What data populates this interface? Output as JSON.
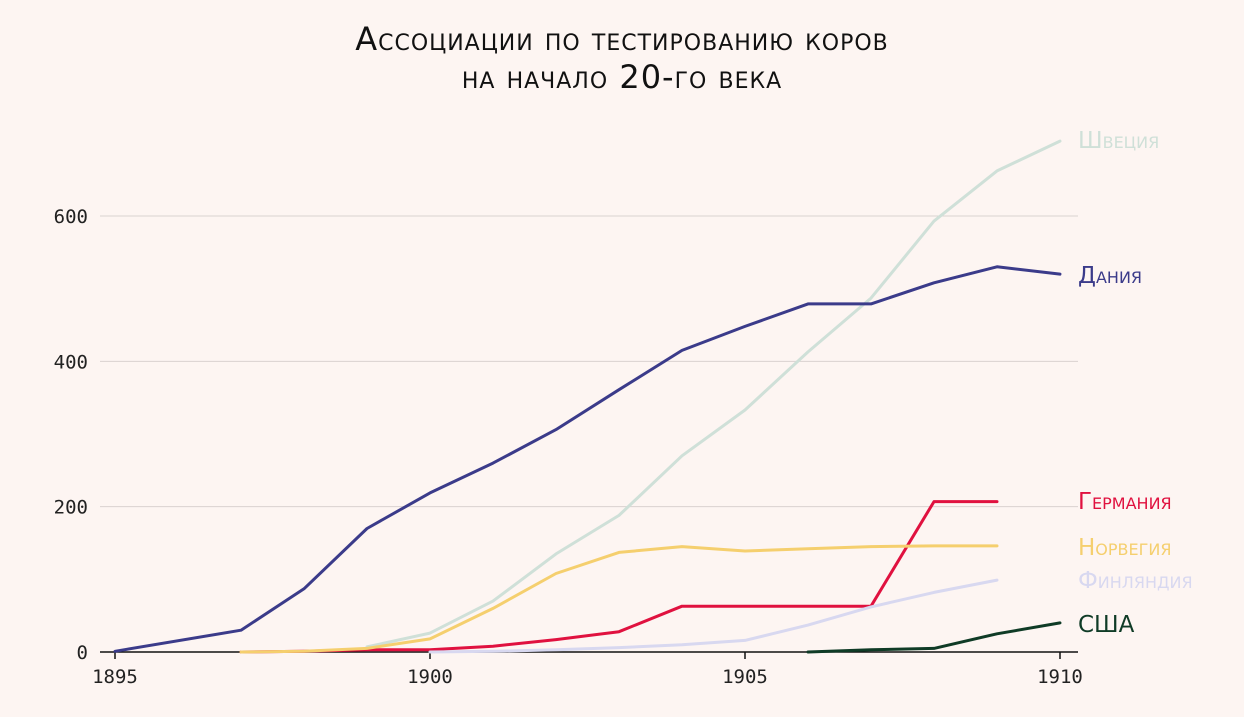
{
  "chart_data": {
    "type": "line",
    "title_line1": "Ассоциации по тестированию коров",
    "title_line2": "на начало 20-го века",
    "xlabel": "",
    "ylabel": "",
    "xlim": [
      1895,
      1910
    ],
    "ylim": [
      0,
      720
    ],
    "x_ticks": [
      1895,
      1900,
      1905,
      1910
    ],
    "y_ticks": [
      0,
      200,
      400,
      600
    ],
    "grid": "horizontal",
    "legend": "labels at line ends (right)",
    "series": [
      {
        "name": "Швеция",
        "color": "#cfe0d8",
        "points": [
          [
            1899,
            7
          ],
          [
            1900,
            26
          ],
          [
            1901,
            70
          ],
          [
            1902,
            135
          ],
          [
            1903,
            188
          ],
          [
            1904,
            270
          ],
          [
            1905,
            333
          ],
          [
            1906,
            413
          ],
          [
            1907,
            487
          ],
          [
            1908,
            593
          ],
          [
            1909,
            662
          ],
          [
            1910,
            703
          ]
        ]
      },
      {
        "name": "Дания",
        "color": "#3b3b8a",
        "points": [
          [
            1895,
            1
          ],
          [
            1897,
            30
          ],
          [
            1898,
            87
          ],
          [
            1899,
            170
          ],
          [
            1900,
            219
          ],
          [
            1901,
            260
          ],
          [
            1902,
            306
          ],
          [
            1903,
            361
          ],
          [
            1904,
            415
          ],
          [
            1905,
            448
          ],
          [
            1906,
            479
          ],
          [
            1907,
            479
          ],
          [
            1908,
            508
          ],
          [
            1909,
            530
          ],
          [
            1910,
            520
          ]
        ]
      },
      {
        "name": "Германия",
        "color": "#e0113f",
        "points": [
          [
            1897,
            0
          ],
          [
            1898,
            1
          ],
          [
            1899,
            3
          ],
          [
            1900,
            3
          ],
          [
            1901,
            8
          ],
          [
            1902,
            17
          ],
          [
            1903,
            28
          ],
          [
            1904,
            63
          ],
          [
            1905,
            63
          ],
          [
            1906,
            63
          ],
          [
            1907,
            63
          ],
          [
            1908,
            207
          ],
          [
            1909,
            207
          ]
        ]
      },
      {
        "name": "Норвегия",
        "color": "#f5cf6e",
        "points": [
          [
            1897,
            0
          ],
          [
            1898,
            1
          ],
          [
            1899,
            5
          ],
          [
            1900,
            18
          ],
          [
            1901,
            60
          ],
          [
            1902,
            108
          ],
          [
            1903,
            137
          ],
          [
            1904,
            145
          ],
          [
            1905,
            139
          ],
          [
            1906,
            142
          ],
          [
            1907,
            145
          ],
          [
            1908,
            146
          ],
          [
            1909,
            146
          ]
        ]
      },
      {
        "name": "Финляндия",
        "color": "#d8d8f0",
        "points": [
          [
            1900,
            0
          ],
          [
            1901,
            1
          ],
          [
            1902,
            3
          ],
          [
            1903,
            6
          ],
          [
            1904,
            10
          ],
          [
            1905,
            16
          ],
          [
            1906,
            37
          ],
          [
            1907,
            62
          ],
          [
            1908,
            82
          ],
          [
            1909,
            99
          ]
        ]
      },
      {
        "name": "США",
        "color": "#0f3b26",
        "points": [
          [
            1906,
            0
          ],
          [
            1907,
            3
          ],
          [
            1908,
            5
          ],
          [
            1909,
            25
          ],
          [
            1910,
            40
          ]
        ]
      }
    ]
  }
}
